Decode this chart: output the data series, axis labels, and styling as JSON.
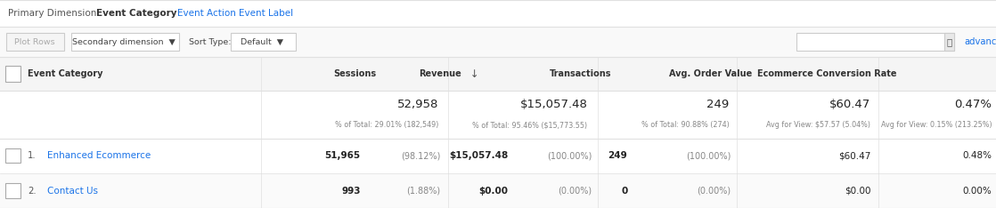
{
  "primary_dimension_label": "Primary Dimension:",
  "primary_dimension_value": "Event Category",
  "primary_dimension_links": [
    "Event Action",
    "Event Label"
  ],
  "columns": [
    "Event Category",
    "Sessions",
    "Revenue",
    "Transactions",
    "Avg. Order Value",
    "Ecommerce Conversion Rate"
  ],
  "totals_row": {
    "sessions_main": "52,958",
    "sessions_sub": "% of Total: 29.01% (182,549)",
    "revenue_main": "$15,057.48",
    "revenue_sub": "% of Total: 95.46% ($15,773.55)",
    "transactions_main": "249",
    "transactions_sub": "% of Total: 90.88% (274)",
    "avg_order_main": "$60.47",
    "avg_order_sub": "Avg for View: $57.57 (5.04%)",
    "ecomm_main": "0.47%",
    "ecomm_sub": "Avg for View: 0.15% (213.25%)"
  },
  "data_rows": [
    {
      "num": "1.",
      "category": "Enhanced Ecommerce",
      "sessions_main": "51,965",
      "sessions_pct": "(98.12%)",
      "revenue_main": "$15,057.48",
      "revenue_pct": "(100.00%)",
      "transactions_main": "249",
      "transactions_pct": "(100.00%)",
      "avg_order": "$60.47",
      "ecomm_rate": "0.48%"
    },
    {
      "num": "2.",
      "category": "Contact Us",
      "sessions_main": "993",
      "sessions_pct": "(1.88%)",
      "revenue_main": "$0.00",
      "revenue_pct": "(0.00%)",
      "transactions_main": "0",
      "transactions_pct": "(0.00%)",
      "avg_order": "$0.00",
      "ecomm_rate": "0.00%"
    }
  ],
  "bg_color": "#ffffff",
  "header_bg": "#f5f5f5",
  "toolbar_bg": "#f9f9f9",
  "border_color": "#e0e0e0",
  "text_dark": "#222222",
  "text_gray": "#888888",
  "text_link": "#1a73e8",
  "text_label": "#555555",
  "text_medium": "#444444",
  "checkbox_border": "#aaaaaa",
  "toolbar_border": "#cccccc",
  "row_alt_bg": "#fafafa"
}
